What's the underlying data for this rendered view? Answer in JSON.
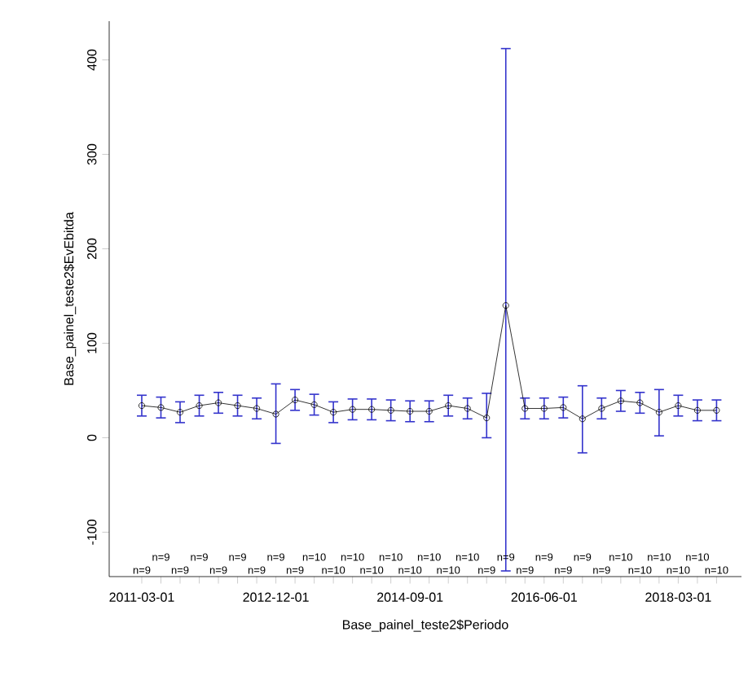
{
  "chart_data": {
    "type": "line",
    "xlabel": "Base_painel_teste2$Periodo",
    "ylabel": "Base_painel_teste2$EvEbitda",
    "categories": [
      "2011-03-01",
      null,
      null,
      null,
      null,
      null,
      null,
      "2012-12-01",
      null,
      null,
      null,
      null,
      null,
      null,
      "2014-09-01",
      null,
      null,
      null,
      null,
      null,
      null,
      "2016-06-01",
      null,
      null,
      null,
      null,
      null,
      null,
      "2018-03-01",
      null,
      null
    ],
    "series": [
      {
        "color": "#000000",
        "values": [
          34,
          32,
          27,
          34,
          37,
          34,
          31,
          25,
          40,
          35,
          27,
          30,
          30,
          29,
          28,
          28,
          34,
          31,
          21,
          140,
          31,
          31,
          32,
          20,
          31,
          39,
          37,
          27,
          34,
          29,
          29
        ],
        "errors": [
          11,
          11,
          11,
          11,
          11,
          11,
          11,
          [
            -6,
            57
          ],
          11,
          11,
          11,
          11,
          11,
          11,
          11,
          11,
          11,
          11,
          [
            0,
            47
          ],
          [
            -141,
            412
          ],
          11,
          11,
          11,
          [
            -16,
            55
          ],
          11,
          11,
          11,
          [
            2,
            51
          ],
          11,
          11,
          11
        ]
      }
    ],
    "marker": "circle",
    "ylim": [
      -147,
      441
    ],
    "yticks": [
      -100,
      0,
      100,
      200,
      300,
      400
    ],
    "annotations": [
      "n=9",
      "n=9",
      "n=9",
      "n=9",
      "n=9",
      "n=9",
      "n=9",
      "n=9",
      "n=9",
      "n=10",
      "n=10",
      "n=10",
      "n=10",
      "n=10",
      "n=10",
      "n=10",
      "n=10",
      "n=10",
      "n=9",
      "n=9",
      "n=9",
      "n=9",
      "n=9",
      "n=9",
      "n=9",
      "n=10",
      "n=10",
      "n=10",
      "n=10",
      "n=10",
      "n=10"
    ]
  }
}
